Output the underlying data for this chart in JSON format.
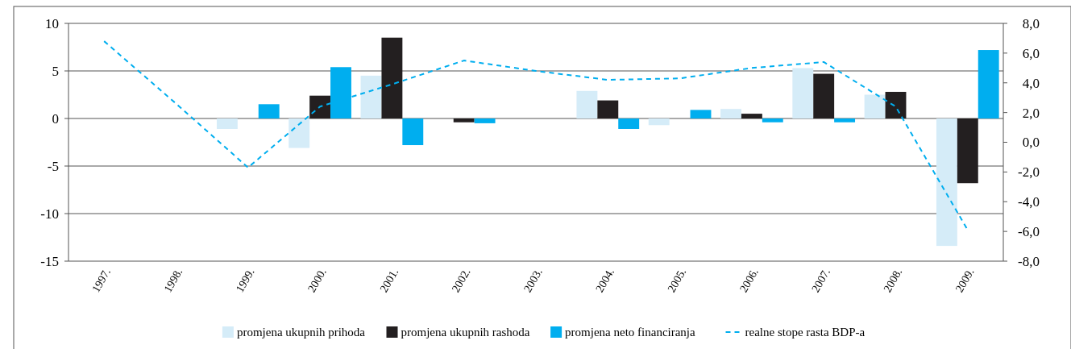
{
  "chart_data": {
    "type": "bar",
    "categories": [
      "1997.",
      "1998.",
      "1999.",
      "2000.",
      "2001.",
      "2002.",
      "2003.",
      "2004.",
      "2005.",
      "2006.",
      "2007.",
      "2008.",
      "2009."
    ],
    "series": [
      {
        "name": "promjena ukupnih prihoda",
        "color": "#d5ecf8",
        "values": [
          null,
          null,
          -1.1,
          -3.1,
          4.5,
          null,
          null,
          2.9,
          -0.7,
          1.0,
          5.3,
          2.5,
          -13.4
        ]
      },
      {
        "name": "promjena ukupnih rashoda",
        "color": "#231f20",
        "values": [
          null,
          null,
          null,
          2.4,
          8.5,
          -0.4,
          null,
          1.9,
          null,
          0.5,
          4.7,
          2.8,
          -6.8
        ]
      },
      {
        "name": "promjena neto financiranja",
        "color": "#00aeef",
        "values": [
          null,
          null,
          1.5,
          5.4,
          -2.8,
          -0.5,
          null,
          -1.1,
          0.9,
          -0.4,
          -0.4,
          null,
          7.2
        ]
      },
      {
        "name": "realne stope rasta BDP-a",
        "color": "#00aeef",
        "type": "line",
        "axis": "y2",
        "line_style": "dashed",
        "values": [
          6.8,
          2.6,
          -1.7,
          2.4,
          3.9,
          5.5,
          4.8,
          4.2,
          4.3,
          5.0,
          5.4,
          2.4,
          -5.9
        ]
      }
    ],
    "ylim": [
      -15,
      10
    ],
    "yticks": [
      -15,
      -10,
      -5,
      0,
      5,
      10
    ],
    "y2lim": [
      -8,
      8
    ],
    "y2ticks": [
      {
        "value": -8,
        "label": "-8,0"
      },
      {
        "value": -6,
        "label": "-6,0"
      },
      {
        "value": -4,
        "label": "-4,0"
      },
      {
        "value": -2,
        "label": "-2,0"
      },
      {
        "value": 0,
        "label": "0,0"
      },
      {
        "value": 2,
        "label": "2,0"
      },
      {
        "value": 4,
        "label": "4,0"
      },
      {
        "value": 6,
        "label": "6,0"
      },
      {
        "value": 8,
        "label": "8,0"
      }
    ],
    "grid": "y",
    "legend": "bottom",
    "marker": "none"
  }
}
